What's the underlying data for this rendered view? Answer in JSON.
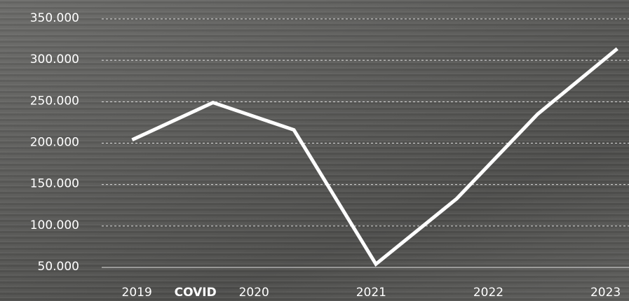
{
  "chart_data": {
    "type": "line",
    "x": [
      2018.96,
      2019.65,
      2020.34,
      2021.04,
      2021.73,
      2022.42,
      2023.1
    ],
    "series": [
      {
        "color": "#ffffff",
        "values": [
          204000,
          249000,
          216000,
          54000,
          133000,
          235000,
          314000
        ]
      }
    ],
    "xlim": [
      2018.7,
      2023.2
    ],
    "xticks": [
      2019,
      2020,
      2021,
      2022,
      2023
    ],
    "ylim": [
      50000,
      350000
    ],
    "yticks": [
      {
        "value": 50000,
        "label": "50.000"
      },
      {
        "value": 100000,
        "label": "100.000"
      },
      {
        "value": 150000,
        "label": "150.000"
      },
      {
        "value": 200000,
        "label": "200.000"
      },
      {
        "value": 250000,
        "label": "250.000"
      },
      {
        "value": 300000,
        "label": "300.000"
      },
      {
        "value": 350000,
        "label": "350.000"
      }
    ],
    "annotations": [
      "COVID"
    ],
    "grid": true
  }
}
